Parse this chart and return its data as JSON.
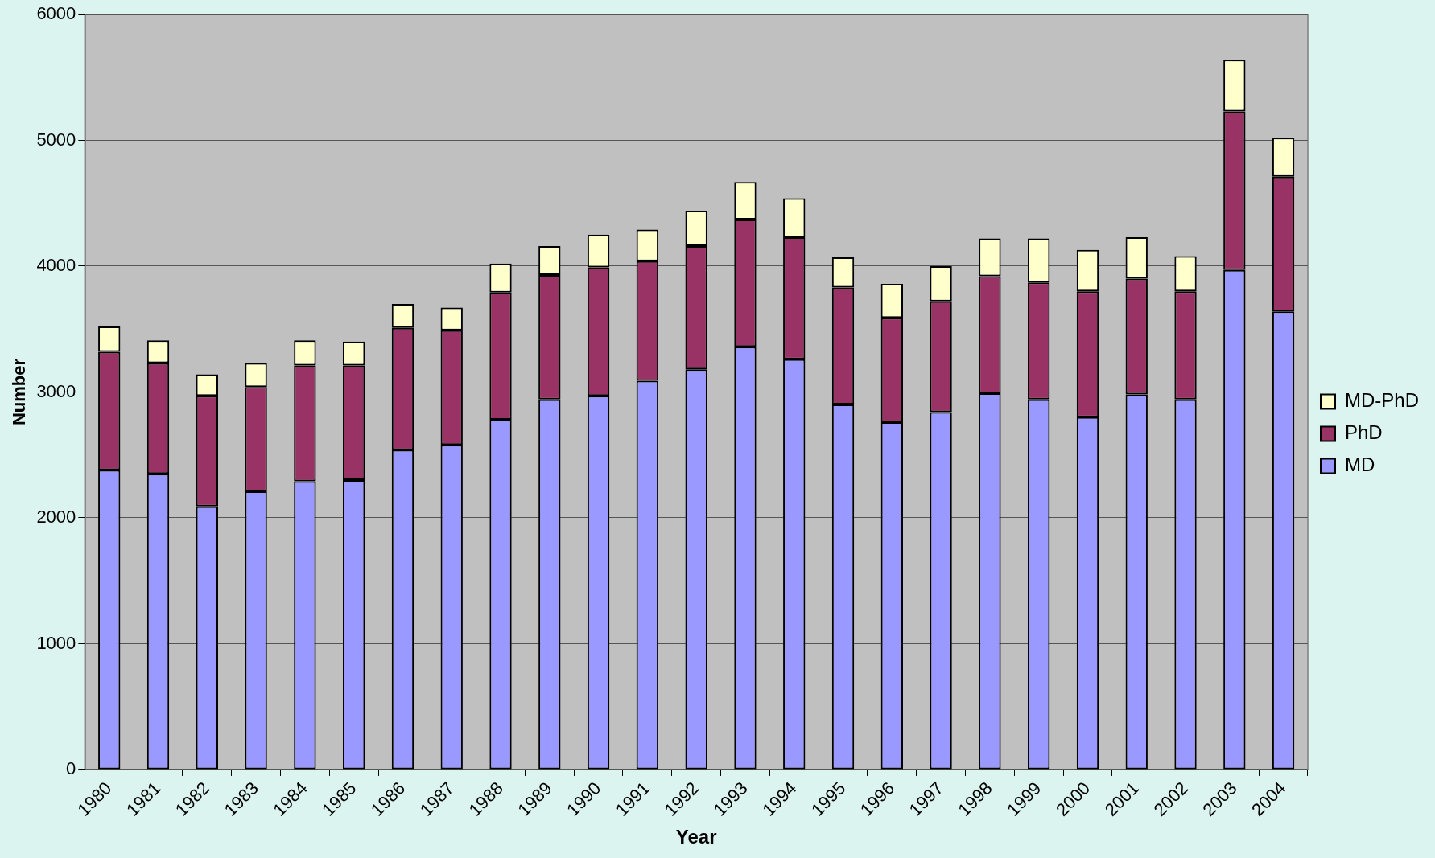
{
  "chart_data": {
    "type": "bar",
    "xlabel": "Year",
    "ylabel": "Number",
    "stacked": true,
    "grid": "y",
    "legend": "right",
    "categories": [
      "1980",
      "1981",
      "1982",
      "1983",
      "1984",
      "1985",
      "1986",
      "1987",
      "1988",
      "1989",
      "1990",
      "1991",
      "1992",
      "1993",
      "1994",
      "1995",
      "1996",
      "1997",
      "1998",
      "1999",
      "2000",
      "2001",
      "2002",
      "2003",
      "2004"
    ],
    "ylim": [
      0,
      6000
    ],
    "yticks": [
      0,
      1000,
      2000,
      3000,
      4000,
      5000,
      6000
    ],
    "series": [
      {
        "name": "MD",
        "color": "#9999ff",
        "values": [
          2380,
          2350,
          2090,
          2210,
          2290,
          2300,
          2540,
          2580,
          2780,
          2940,
          2970,
          3090,
          3180,
          3360,
          3260,
          2900,
          2760,
          2840,
          2990,
          2940,
          2800,
          2980,
          2940,
          3970,
          3640
        ]
      },
      {
        "name": "PhD",
        "color": "#993366",
        "values": [
          940,
          880,
          880,
          830,
          920,
          910,
          970,
          910,
          1010,
          990,
          1020,
          950,
          980,
          1010,
          970,
          930,
          830,
          880,
          930,
          930,
          1000,
          920,
          860,
          1260,
          1070
        ]
      },
      {
        "name": "MD-PhD",
        "color": "#ffffcc",
        "values": [
          200,
          180,
          170,
          190,
          200,
          190,
          190,
          180,
          230,
          230,
          260,
          250,
          280,
          300,
          310,
          240,
          270,
          280,
          300,
          350,
          330,
          330,
          280,
          410,
          310
        ]
      }
    ]
  }
}
